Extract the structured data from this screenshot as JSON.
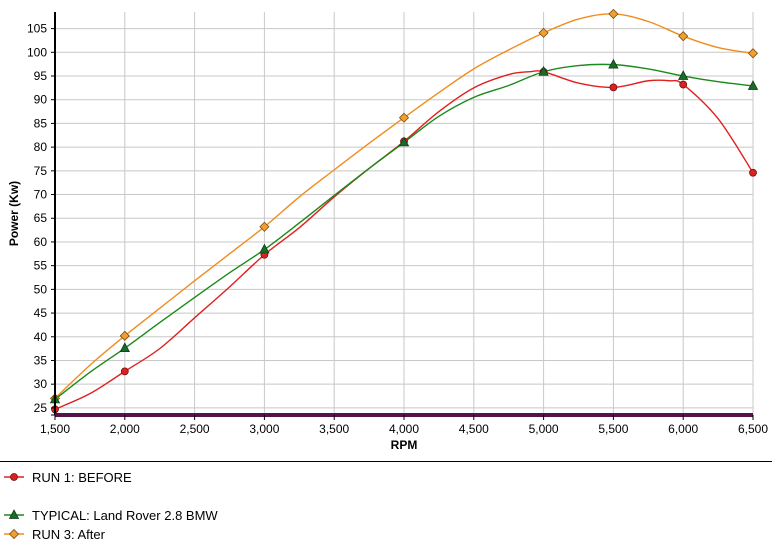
{
  "chart_data": {
    "type": "line",
    "xlabel": "RPM",
    "ylabel": "Power (Kw)",
    "xlim": [
      1500,
      6500
    ],
    "ylim": [
      23.5,
      108.5
    ],
    "x_ticks": [
      1500,
      2000,
      2500,
      3000,
      3500,
      4000,
      4500,
      5000,
      5500,
      6000,
      6500
    ],
    "x_tick_labels": [
      "1,500",
      "2,000",
      "2,500",
      "3,000",
      "3,500",
      "4,000",
      "4,500",
      "5,000",
      "5,500",
      "6,000",
      "6,500"
    ],
    "y_ticks": [
      25,
      30,
      35,
      40,
      45,
      50,
      55,
      60,
      65,
      70,
      75,
      80,
      85,
      90,
      95,
      100,
      105
    ],
    "y_tick_labels": [
      "25",
      "30",
      "35",
      "40",
      "45",
      "50",
      "55",
      "60",
      "65",
      "70",
      "75",
      "80",
      "85",
      "90",
      "95",
      "100",
      "105"
    ],
    "grid": true,
    "legend_position": "bottom-left",
    "series": [
      {
        "name": "RUN 1: BEFORE",
        "color": "#e02020",
        "marker": "circle",
        "marker_fill": "#e02020",
        "x": [
          1500,
          2000,
          3000,
          4000,
          5000,
          5500,
          6000,
          6500
        ],
        "values": [
          24.7,
          32.7,
          57.3,
          81.2,
          95.9,
          92.6,
          93.2,
          74.6
        ],
        "curve_x": [
          1500,
          1750,
          2000,
          2250,
          2500,
          2750,
          3000,
          3250,
          3500,
          3750,
          4000,
          4250,
          4500,
          4750,
          4900,
          5000,
          5250,
          5500,
          5750,
          5900,
          6000,
          6250,
          6500
        ],
        "curve_y": [
          24.7,
          28.0,
          32.7,
          37.5,
          44.0,
          50.5,
          57.3,
          63.0,
          69.5,
          75.5,
          81.2,
          87.5,
          92.5,
          95.3,
          95.9,
          95.9,
          93.5,
          92.6,
          94.0,
          94.0,
          93.2,
          86.0,
          74.6
        ]
      },
      {
        "name": "TYPICAL: Land Rover 2.8 BMW",
        "color": "#1a8a1a",
        "marker": "triangle",
        "marker_fill": "#1a6b2a",
        "x": [
          1500,
          2000,
          3000,
          4000,
          5000,
          5500,
          6000,
          6500
        ],
        "values": [
          26.8,
          37.6,
          58.4,
          81.0,
          95.9,
          97.4,
          95.0,
          92.9
        ],
        "curve_x": [
          1500,
          1750,
          2000,
          2250,
          2500,
          2750,
          3000,
          3250,
          3500,
          3750,
          4000,
          4250,
          4500,
          4750,
          5000,
          5250,
          5500,
          5750,
          6000,
          6250,
          6500
        ],
        "curve_y": [
          26.8,
          32.5,
          37.6,
          43.0,
          48.3,
          53.5,
          58.4,
          64.0,
          69.8,
          75.5,
          81.0,
          86.5,
          90.5,
          93.0,
          95.9,
          97.2,
          97.4,
          96.5,
          95.0,
          93.8,
          92.9
        ]
      },
      {
        "name": "RUN 3: After",
        "color": "#f08c1e",
        "marker": "diamond",
        "marker_fill": "#f0a030",
        "x": [
          1500,
          2000,
          3000,
          4000,
          5000,
          5500,
          6000,
          6500
        ],
        "values": [
          27.0,
          40.2,
          63.2,
          86.2,
          104.1,
          108.1,
          103.4,
          99.8
        ],
        "curve_x": [
          1500,
          1750,
          2000,
          2250,
          2500,
          2750,
          3000,
          3250,
          3500,
          3750,
          4000,
          4250,
          4500,
          4750,
          5000,
          5250,
          5500,
          5750,
          6000,
          6250,
          6500
        ],
        "curve_y": [
          27.0,
          34.0,
          40.2,
          46.0,
          51.8,
          57.5,
          63.2,
          69.5,
          75.2,
          80.8,
          86.2,
          91.5,
          96.5,
          100.5,
          104.1,
          107.0,
          108.1,
          106.5,
          103.4,
          101.0,
          99.8
        ]
      }
    ]
  }
}
